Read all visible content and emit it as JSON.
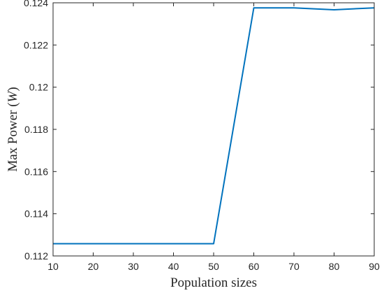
{
  "chart_data": {
    "type": "line",
    "title": "",
    "xlabel": "Population sizes",
    "ylabel": {
      "prefix": "Max Power (",
      "unit": "W",
      "suffix": ")"
    },
    "xlim": [
      10,
      90
    ],
    "ylim": [
      0.112,
      0.124
    ],
    "xticks": [
      10,
      20,
      30,
      40,
      50,
      60,
      70,
      80,
      90
    ],
    "xtick_labels": [
      "10",
      "20",
      "30",
      "40",
      "50",
      "60",
      "70",
      "80",
      "90"
    ],
    "yticks": [
      0.112,
      0.114,
      0.116,
      0.118,
      0.12,
      0.122,
      0.124
    ],
    "ytick_labels": [
      "0.112",
      "0.114",
      "0.116",
      "0.118",
      "0.12",
      "0.122",
      "0.124"
    ],
    "grid": false,
    "series": [
      {
        "color": "#0072BD",
        "x": [
          10,
          20,
          30,
          40,
          50,
          60,
          70,
          80,
          90
        ],
        "y": [
          0.11258,
          0.11258,
          0.11258,
          0.11258,
          0.11258,
          0.12376,
          0.12376,
          0.12367,
          0.12376
        ]
      }
    ]
  }
}
